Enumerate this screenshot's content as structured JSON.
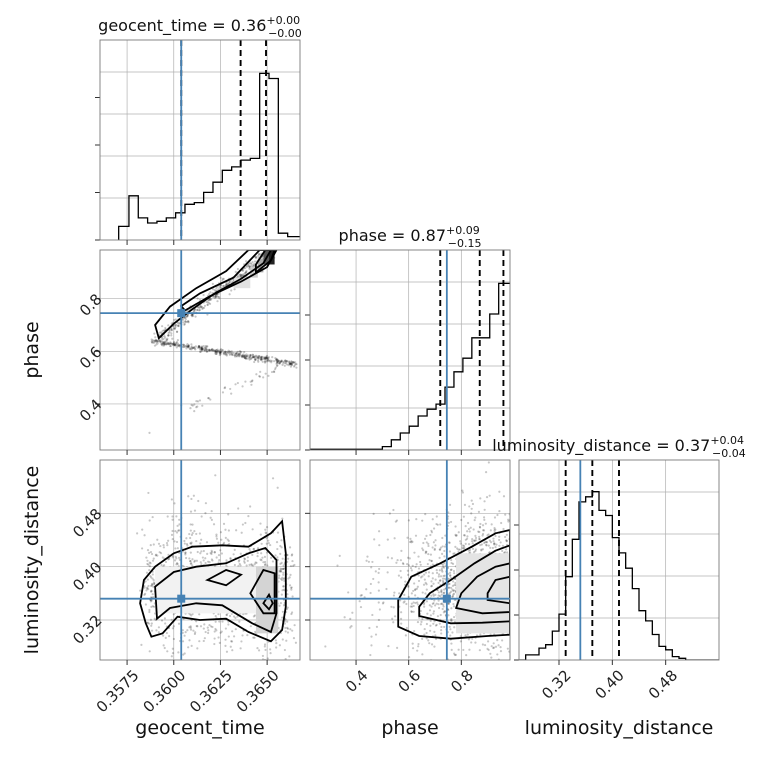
{
  "chart_data": {
    "type": "corner",
    "parameters": [
      "geocent_time",
      "phase",
      "luminosity_distance"
    ],
    "truths": {
      "geocent_time": 0.3604,
      "phase": 0.745,
      "luminosity_distance": 0.352
    },
    "ranges": {
      "geocent_time": [
        0.35605,
        0.36676
      ],
      "phase": [
        0.225,
        0.985
      ],
      "luminosity_distance": [
        0.26,
        0.56
      ],
      "hist_geocent_time": [
        0,
        1
      ],
      "hist_phase": [
        0,
        1
      ],
      "hist_luminosity_distance": [
        0,
        1
      ]
    },
    "ticks": {
      "geocent_time": [
        0.3575,
        0.36,
        0.3625,
        0.365
      ],
      "geocent_time_labels": [
        "0.3575",
        "0.3600",
        "0.3625",
        "0.3650"
      ],
      "phase": [
        0.4,
        0.6,
        0.8
      ],
      "phase_labels": [
        "0.4",
        "0.6",
        "0.8"
      ],
      "luminosity_distance": [
        0.32,
        0.4,
        0.48
      ],
      "luminosity_distance_labels": [
        "0.32",
        "0.40",
        "0.48"
      ]
    },
    "titles": {
      "geocent_time": {
        "prefix": "geocent_time = 0.36",
        "sup": "+0.00",
        "sub": "−0.00"
      },
      "phase": {
        "prefix": "phase = 0.87",
        "sup": "+0.09",
        "sub": "−0.15"
      },
      "luminosity_distance": {
        "prefix": "luminosity_distance = 0.37",
        "sup": "+0.04",
        "sub": "−0.04"
      }
    },
    "quantiles": {
      "geocent_time": [
        0.3604,
        0.36358,
        0.36494
      ],
      "phase": [
        0.72,
        0.87,
        0.96
      ],
      "luminosity_distance": [
        0.33,
        0.37,
        0.41
      ]
    },
    "hist_geocent_time": {
      "edges": [
        0.35705,
        0.3576,
        0.3581,
        0.3586,
        0.3591,
        0.3596,
        0.3601,
        0.3606,
        0.3611,
        0.3616,
        0.3621,
        0.3626,
        0.3631,
        0.3636,
        0.3641,
        0.3646,
        0.3651,
        0.3656,
        0.3661,
        0.36676
      ],
      "counts": [
        0.08,
        0.26,
        0.13,
        0.1,
        0.11,
        0.13,
        0.16,
        0.21,
        0.22,
        0.28,
        0.34,
        0.41,
        0.43,
        0.47,
        0.48,
        0.98,
        0.95,
        0.04,
        0.02
      ]
    },
    "hist_phase": {
      "edges": [
        0.225,
        0.5,
        0.534,
        0.568,
        0.602,
        0.636,
        0.67,
        0.704,
        0.738,
        0.772,
        0.806,
        0.84,
        0.874,
        0.908,
        0.942,
        0.985
      ],
      "counts": [
        0.004,
        0.02,
        0.06,
        0.1,
        0.14,
        0.2,
        0.24,
        0.27,
        0.37,
        0.46,
        0.54,
        0.66,
        0.66,
        0.8,
        0.98
      ]
    },
    "hist_luminosity_distance": {
      "edges": [
        0.26,
        0.27,
        0.28,
        0.29,
        0.3,
        0.31,
        0.32,
        0.33,
        0.34,
        0.35,
        0.36,
        0.37,
        0.38,
        0.39,
        0.4,
        0.41,
        0.42,
        0.43,
        0.44,
        0.45,
        0.46,
        0.47,
        0.48,
        0.49,
        0.5,
        0.51,
        0.52,
        0.53,
        0.54,
        0.55,
        0.56
      ],
      "counts": [
        0.0,
        0.03,
        0.03,
        0.07,
        0.09,
        0.17,
        0.27,
        0.49,
        0.71,
        0.93,
        0.96,
        0.99,
        0.88,
        0.85,
        0.72,
        0.63,
        0.54,
        0.42,
        0.29,
        0.23,
        0.15,
        0.08,
        0.06,
        0.02,
        0.01,
        0.0,
        0.0,
        0.0,
        0.0,
        0.0
      ]
    },
    "contours": {
      "geocent_time_phase": [
        [
          [
            0.3592,
            0.65
          ],
          [
            0.36,
            0.705
          ],
          [
            0.361,
            0.76
          ],
          [
            0.3622,
            0.82
          ],
          [
            0.3636,
            0.875
          ],
          [
            0.3648,
            0.935
          ],
          [
            0.3652,
            0.985
          ],
          [
            0.364,
            0.985
          ],
          [
            0.3628,
            0.905
          ],
          [
            0.3612,
            0.84
          ],
          [
            0.3598,
            0.77
          ],
          [
            0.359,
            0.7
          ],
          [
            0.3592,
            0.65
          ]
        ],
        [
          [
            0.3606,
            0.755
          ],
          [
            0.362,
            0.812
          ],
          [
            0.3636,
            0.865
          ],
          [
            0.365,
            0.92
          ],
          [
            0.3655,
            0.985
          ],
          [
            0.3646,
            0.985
          ],
          [
            0.3632,
            0.88
          ],
          [
            0.3614,
            0.82
          ],
          [
            0.3604,
            0.772
          ],
          [
            0.3606,
            0.755
          ]
        ],
        [
          [
            0.3644,
            0.9
          ],
          [
            0.3652,
            0.945
          ],
          [
            0.3654,
            0.985
          ],
          [
            0.3649,
            0.985
          ],
          [
            0.3644,
            0.93
          ],
          [
            0.3644,
            0.9
          ]
        ]
      ],
      "geocent_time_luminosity_distance": [
        [
          [
            0.3585,
            0.315
          ],
          [
            0.3588,
            0.295
          ],
          [
            0.3594,
            0.3
          ],
          [
            0.3602,
            0.325
          ],
          [
            0.3614,
            0.32
          ],
          [
            0.3628,
            0.322
          ],
          [
            0.364,
            0.302
          ],
          [
            0.3652,
            0.288
          ],
          [
            0.3658,
            0.305
          ],
          [
            0.366,
            0.34
          ],
          [
            0.366,
            0.42
          ],
          [
            0.3658,
            0.468
          ],
          [
            0.3652,
            0.45
          ],
          [
            0.364,
            0.43
          ],
          [
            0.3626,
            0.432
          ],
          [
            0.361,
            0.43
          ],
          [
            0.36,
            0.42
          ],
          [
            0.359,
            0.4
          ],
          [
            0.3584,
            0.38
          ],
          [
            0.3582,
            0.345
          ],
          [
            0.3585,
            0.315
          ]
        ],
        [
          [
            0.3591,
            0.322
          ],
          [
            0.3598,
            0.338
          ],
          [
            0.3612,
            0.345
          ],
          [
            0.3626,
            0.342
          ],
          [
            0.3642,
            0.315
          ],
          [
            0.3652,
            0.302
          ],
          [
            0.3655,
            0.33
          ],
          [
            0.3655,
            0.41
          ],
          [
            0.3649,
            0.428
          ],
          [
            0.364,
            0.42
          ],
          [
            0.3628,
            0.405
          ],
          [
            0.3612,
            0.4
          ],
          [
            0.36,
            0.392
          ],
          [
            0.359,
            0.37
          ],
          [
            0.3591,
            0.322
          ]
        ],
        [
          [
            0.3618,
            0.38
          ],
          [
            0.3628,
            0.395
          ],
          [
            0.3636,
            0.388
          ],
          [
            0.3628,
            0.372
          ],
          [
            0.3618,
            0.38
          ]
        ],
        [
          [
            0.3641,
            0.36
          ],
          [
            0.3648,
            0.33
          ],
          [
            0.3654,
            0.33
          ],
          [
            0.3654,
            0.39
          ],
          [
            0.3648,
            0.395
          ],
          [
            0.3641,
            0.36
          ]
        ],
        [
          [
            0.3648,
            0.345
          ],
          [
            0.3651,
            0.336
          ],
          [
            0.3653,
            0.345
          ],
          [
            0.3651,
            0.358
          ],
          [
            0.3648,
            0.345
          ]
        ]
      ],
      "phase_luminosity_distance": [
        [
          [
            0.56,
            0.31
          ],
          [
            0.64,
            0.296
          ],
          [
            0.76,
            0.292
          ],
          [
            0.9,
            0.296
          ],
          [
            0.985,
            0.298
          ],
          [
            0.985,
            0.455
          ],
          [
            0.93,
            0.45
          ],
          [
            0.84,
            0.43
          ],
          [
            0.72,
            0.405
          ],
          [
            0.61,
            0.385
          ],
          [
            0.56,
            0.35
          ],
          [
            0.56,
            0.31
          ]
        ],
        [
          [
            0.64,
            0.326
          ],
          [
            0.76,
            0.315
          ],
          [
            0.88,
            0.316
          ],
          [
            0.985,
            0.318
          ],
          [
            0.985,
            0.432
          ],
          [
            0.93,
            0.424
          ],
          [
            0.85,
            0.405
          ],
          [
            0.76,
            0.38
          ],
          [
            0.68,
            0.36
          ],
          [
            0.64,
            0.34
          ],
          [
            0.64,
            0.326
          ]
        ],
        [
          [
            0.78,
            0.338
          ],
          [
            0.88,
            0.33
          ],
          [
            0.985,
            0.332
          ],
          [
            0.985,
            0.405
          ],
          [
            0.93,
            0.4
          ],
          [
            0.86,
            0.385
          ],
          [
            0.8,
            0.36
          ],
          [
            0.78,
            0.338
          ]
        ],
        [
          [
            0.9,
            0.35
          ],
          [
            0.985,
            0.345
          ],
          [
            0.985,
            0.385
          ],
          [
            0.93,
            0.38
          ],
          [
            0.9,
            0.36
          ],
          [
            0.9,
            0.35
          ]
        ]
      ]
    }
  }
}
